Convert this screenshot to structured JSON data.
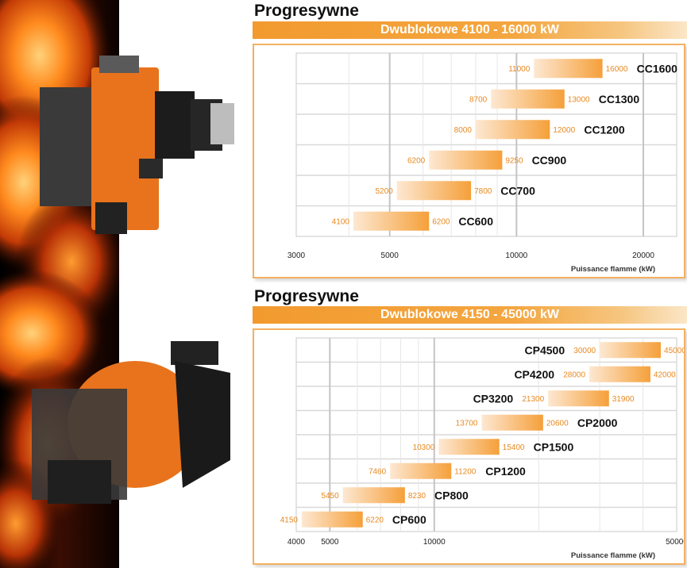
{
  "sections": [
    {
      "title": "Progresywne",
      "banner": "Dwublokowe  4100 - 16000 kW"
    },
    {
      "title": "Progresywne",
      "banner": "Dwublokowe  4150 - 45000 kW"
    }
  ],
  "colors": {
    "bar_light": "#fde8d2",
    "bar_dark": "#f5a03a",
    "value_text": "#e88a20",
    "frame": "#f4b060",
    "grid": "#d9d9d9"
  },
  "chart_data": [
    {
      "type": "bar",
      "orientation": "horizontal-range",
      "title": "",
      "xlabel": "Puissance flamme (kW)",
      "xscale": "log",
      "xlim": [
        3000,
        24000
      ],
      "xticks": [
        3000,
        5000,
        10000,
        20000
      ],
      "xtick_labels": [
        "3000",
        "5000",
        "10000",
        "20000"
      ],
      "grid": true,
      "bars": [
        {
          "model": "CC1600",
          "min": 11000,
          "max": 16000,
          "min_label": "11000",
          "max_label": "16000"
        },
        {
          "model": "CC1300",
          "min": 8700,
          "max": 13000,
          "min_label": "8700",
          "max_label": "13000"
        },
        {
          "model": "CC1200",
          "min": 8000,
          "max": 12000,
          "min_label": "8000",
          "max_label": "12000"
        },
        {
          "model": "CC900",
          "min": 6200,
          "max": 9250,
          "min_label": "6200",
          "max_label": "9250"
        },
        {
          "model": "CC700",
          "min": 5200,
          "max": 7800,
          "min_label": "5200",
          "max_label": "7800"
        },
        {
          "model": "CC600",
          "min": 4100,
          "max": 6200,
          "min_label": "4100",
          "max_label": "6200"
        }
      ]
    },
    {
      "type": "bar",
      "orientation": "horizontal-range",
      "title": "",
      "xlabel": "Puissance flamme (kW)",
      "xscale": "log",
      "xlim": [
        4000,
        50000
      ],
      "xticks": [
        4000,
        5000,
        10000,
        50000
      ],
      "xtick_labels": [
        "4000",
        "5000",
        "10000",
        "50000"
      ],
      "grid": true,
      "bars": [
        {
          "model": "CP4500",
          "min": 30000,
          "max": 45000,
          "min_label": "30000",
          "max_label": "45000"
        },
        {
          "model": "CP4200",
          "min": 28000,
          "max": 42000,
          "min_label": "28000",
          "max_label": "42000"
        },
        {
          "model": "CP3200",
          "min": 21300,
          "max": 31900,
          "min_label": "21300",
          "max_label": "31900"
        },
        {
          "model": "CP2000",
          "min": 13700,
          "max": 20600,
          "min_label": "13700",
          "max_label": "20600"
        },
        {
          "model": "CP1500",
          "min": 10300,
          "max": 15400,
          "min_label": "10300",
          "max_label": "15400"
        },
        {
          "model": "CP1200",
          "min": 7460,
          "max": 11200,
          "min_label": "7460",
          "max_label": "11200"
        },
        {
          "model": "CP800",
          "min": 5450,
          "max": 8230,
          "min_label": "5450",
          "max_label": "8230"
        },
        {
          "model": "CP600",
          "min": 4150,
          "max": 6220,
          "min_label": "4150",
          "max_label": "6220"
        }
      ]
    }
  ]
}
